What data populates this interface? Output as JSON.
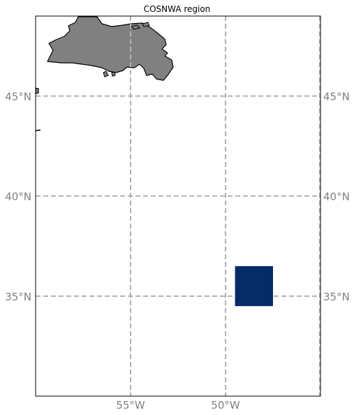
{
  "title": "COSNWA region",
  "map": {
    "lon_range": [
      -60,
      -45
    ],
    "lat_range": [
      30,
      49
    ],
    "gridlines": true,
    "land_color": "#808080",
    "coastline_color": "#000000",
    "gridline_color": "#b0b0b0",
    "tick_color": "#808080",
    "lon_ticks": [
      {
        "value": -55,
        "label": "55°W"
      },
      {
        "value": -50,
        "label": "50°W"
      }
    ],
    "lat_ticks": [
      {
        "value": 45,
        "label": "45°N"
      },
      {
        "value": 40,
        "label": "40°N"
      },
      {
        "value": 35,
        "label": "35°N"
      }
    ],
    "region": {
      "name": "COSNWA region",
      "lon_min": -49.5,
      "lon_max": -47.5,
      "lat_min": 34.5,
      "lat_max": 36.5,
      "fill": "#062b66"
    }
  }
}
